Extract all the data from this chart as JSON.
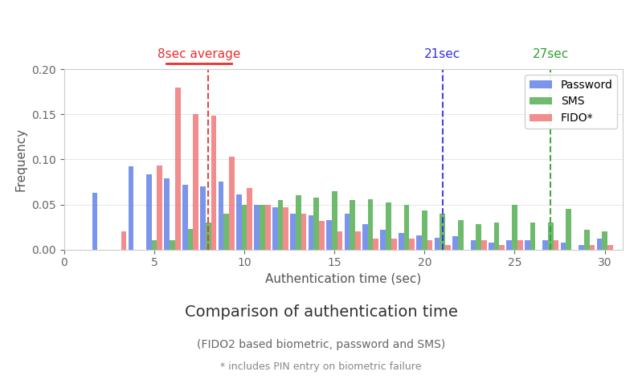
{
  "title": "Comparison of authentication time",
  "subtitle1": "(FIDO2 based biometric, password and SMS)",
  "subtitle2": "* includes PIN entry on biometric failure",
  "xlabel": "Authentication time (sec)",
  "ylabel": "Frequency",
  "xlim": [
    1,
    31
  ],
  "ylim": [
    0,
    0.2
  ],
  "background_color": "#ffffff",
  "plot_background": "#ffffff",
  "bar_width": 0.3,
  "x_positions": [
    2,
    3,
    4,
    5,
    6,
    7,
    8,
    9,
    10,
    11,
    12,
    13,
    14,
    15,
    16,
    17,
    18,
    19,
    20,
    21,
    22,
    23,
    24,
    25,
    26,
    27,
    28,
    29,
    30
  ],
  "password": [
    0.063,
    0.0,
    0.092,
    0.083,
    0.079,
    0.072,
    0.07,
    0.075,
    0.061,
    0.05,
    0.047,
    0.04,
    0.038,
    0.033,
    0.04,
    0.028,
    0.022,
    0.018,
    0.016,
    0.013,
    0.015,
    0.01,
    0.008,
    0.01,
    0.01,
    0.01,
    0.008,
    0.005,
    0.012
  ],
  "sms": [
    0.0,
    0.0,
    0.0,
    0.01,
    0.01,
    0.023,
    0.03,
    0.04,
    0.05,
    0.05,
    0.055,
    0.06,
    0.058,
    0.065,
    0.055,
    0.056,
    0.052,
    0.05,
    0.043,
    0.04,
    0.033,
    0.028,
    0.03,
    0.05,
    0.03,
    0.03,
    0.045,
    0.022,
    0.02
  ],
  "fido": [
    0.0,
    0.02,
    0.0,
    0.093,
    0.18,
    0.15,
    0.148,
    0.103,
    0.068,
    0.05,
    0.047,
    0.04,
    0.032,
    0.02,
    0.02,
    0.012,
    0.012,
    0.012,
    0.01,
    0.005,
    0.0,
    0.01,
    0.005,
    0.01,
    0.0,
    0.01,
    0.0,
    0.005,
    0.005
  ],
  "password_color": "#5b7be8",
  "sms_color": "#4aaa4a",
  "fido_color": "#f07070",
  "vline_fido_x": 8.0,
  "vline_fido_color": "#e83030",
  "vline_password_x": 21.0,
  "vline_password_color": "#3030e8",
  "vline_sms_x": 27.0,
  "vline_sms_color": "#30a030",
  "label_fido": "8sec average",
  "label_password_vline": "21sec",
  "label_sms_vline": "27sec",
  "yticks": [
    0.0,
    0.05,
    0.1,
    0.15,
    0.2
  ],
  "xticks": [
    0,
    5,
    10,
    15,
    20,
    25,
    30
  ]
}
